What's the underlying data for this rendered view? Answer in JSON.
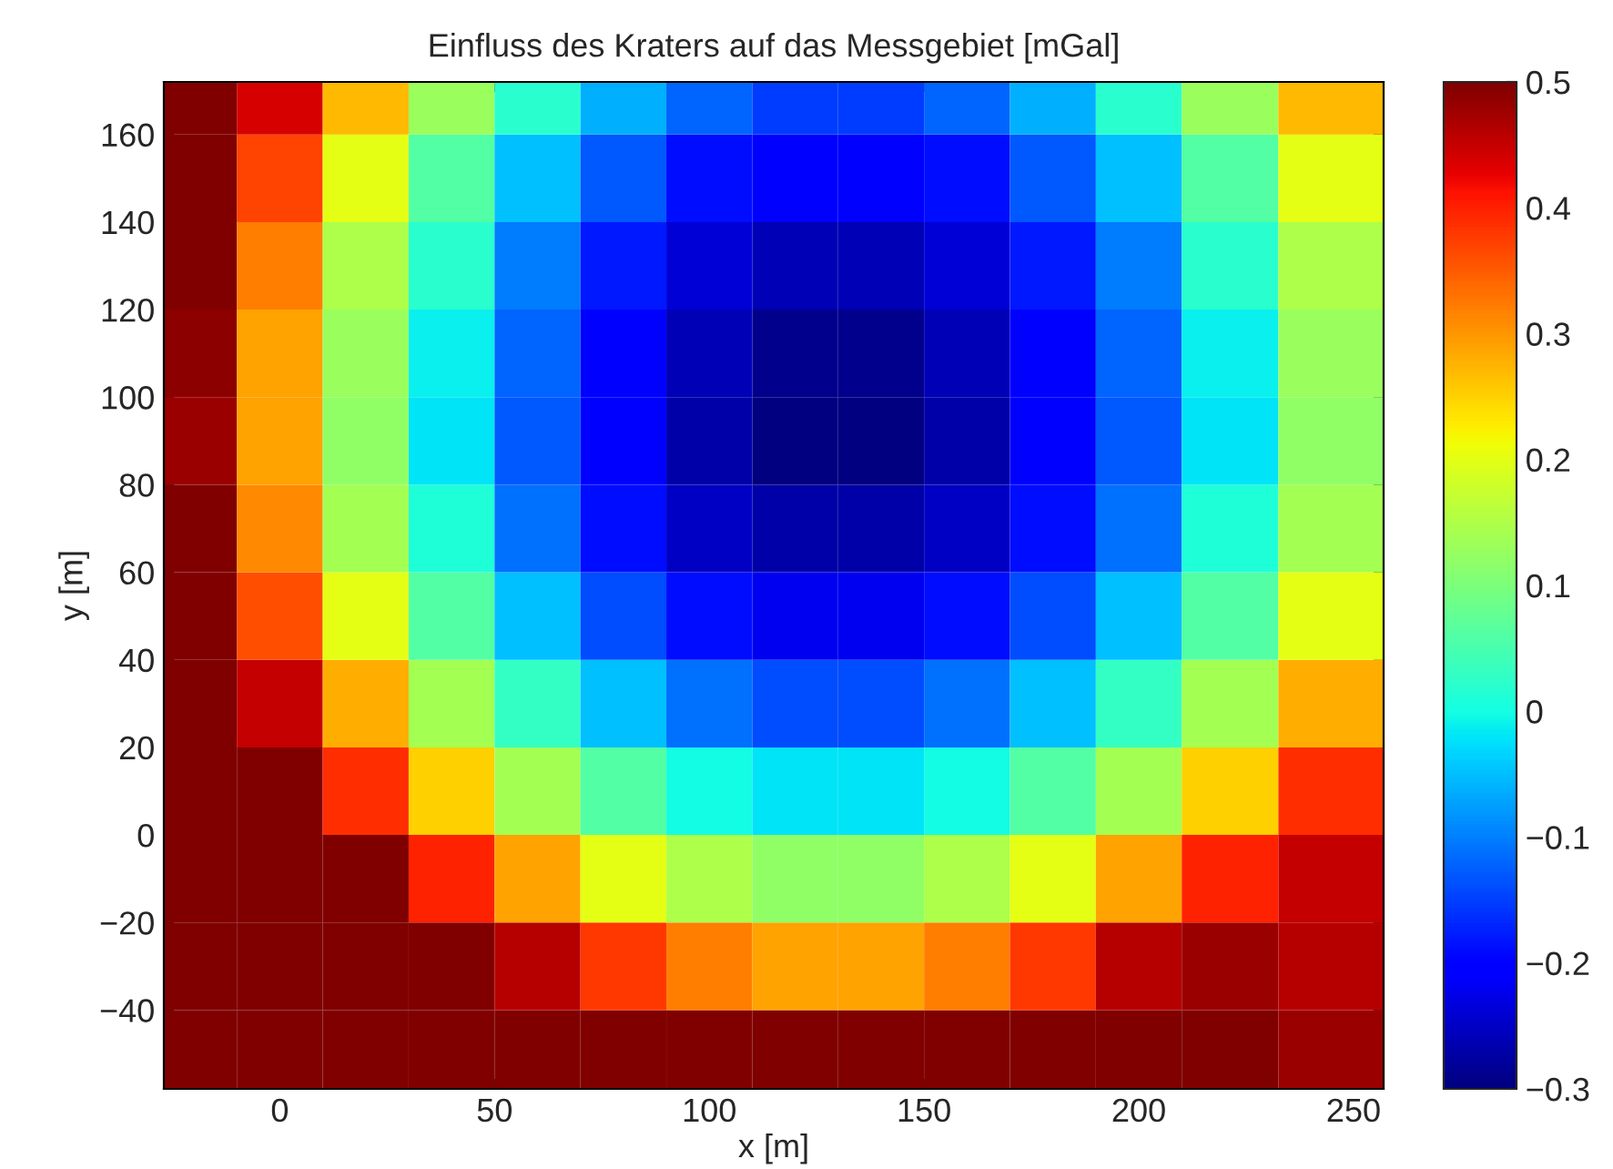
{
  "chart_data": {
    "type": "heatmap",
    "title": "Einfluss des Kraters auf das Messgebiet [mGal]",
    "xlabel": "x [m]",
    "ylabel": "y [m]",
    "x": [
      -20,
      0,
      20,
      40,
      60,
      80,
      100,
      120,
      140,
      160,
      180,
      200,
      220,
      245
    ],
    "y": [
      170,
      150,
      130,
      110,
      90,
      70,
      50,
      30,
      10,
      -10,
      -30,
      -50
    ],
    "cells": [
      [
        0.5,
        0.44,
        0.27,
        0.13,
        0.02,
        -0.06,
        -0.12,
        -0.15,
        -0.15,
        -0.12,
        -0.06,
        0.02,
        0.13,
        0.27
      ],
      [
        0.5,
        0.37,
        0.2,
        0.06,
        -0.05,
        -0.13,
        -0.19,
        -0.21,
        -0.21,
        -0.19,
        -0.13,
        -0.05,
        0.06,
        0.2
      ],
      [
        0.5,
        0.32,
        0.15,
        0.02,
        -0.1,
        -0.18,
        -0.24,
        -0.26,
        -0.26,
        -0.24,
        -0.18,
        -0.1,
        0.02,
        0.15
      ],
      [
        0.49,
        0.29,
        0.13,
        -0.01,
        -0.12,
        -0.21,
        -0.26,
        -0.29,
        -0.29,
        -0.26,
        -0.21,
        -0.12,
        -0.01,
        0.13
      ],
      [
        0.48,
        0.29,
        0.12,
        -0.02,
        -0.13,
        -0.21,
        -0.27,
        -0.3,
        -0.3,
        -0.27,
        -0.21,
        -0.13,
        -0.02,
        0.12
      ],
      [
        0.5,
        0.31,
        0.14,
        0.01,
        -0.11,
        -0.19,
        -0.25,
        -0.27,
        -0.27,
        -0.25,
        -0.19,
        -0.11,
        0.01,
        0.14
      ],
      [
        0.5,
        0.36,
        0.2,
        0.06,
        -0.05,
        -0.14,
        -0.19,
        -0.22,
        -0.22,
        -0.19,
        -0.14,
        -0.05,
        0.06,
        0.2
      ],
      [
        0.5,
        0.45,
        0.28,
        0.14,
        0.03,
        -0.05,
        -0.11,
        -0.14,
        -0.14,
        -0.11,
        -0.05,
        0.03,
        0.14,
        0.28
      ],
      [
        0.5,
        0.5,
        0.39,
        0.25,
        0.14,
        0.06,
        0.0,
        -0.02,
        -0.02,
        0.0,
        0.06,
        0.14,
        0.25,
        0.39
      ],
      [
        0.5,
        0.5,
        0.5,
        0.4,
        0.29,
        0.2,
        0.15,
        0.12,
        0.12,
        0.15,
        0.2,
        0.29,
        0.4,
        0.45
      ],
      [
        0.5,
        0.5,
        0.5,
        0.5,
        0.46,
        0.38,
        0.32,
        0.29,
        0.29,
        0.32,
        0.38,
        0.46,
        0.48,
        0.46
      ],
      [
        0.5,
        0.5,
        0.5,
        0.5,
        0.5,
        0.5,
        0.5,
        0.5,
        0.5,
        0.5,
        0.5,
        0.5,
        0.5,
        0.48
      ]
    ],
    "xlim": [
      -27,
      257
    ],
    "ylim": [
      -58,
      172
    ],
    "xticks": [
      0,
      50,
      100,
      150,
      200,
      250
    ],
    "yticks": [
      {
        "value": -40,
        "label": "−40"
      },
      {
        "value": -20,
        "label": "−20"
      },
      0,
      20,
      40,
      60,
      80,
      100,
      120,
      140,
      160
    ],
    "clim": [
      -0.3,
      0.5
    ],
    "cticks": [
      {
        "value": -0.3,
        "label": "−0.3"
      },
      {
        "value": -0.2,
        "label": "−0.2"
      },
      {
        "value": -0.1,
        "label": "−0.1"
      },
      0,
      0.1,
      0.2,
      0.3,
      0.4,
      0.5
    ]
  }
}
